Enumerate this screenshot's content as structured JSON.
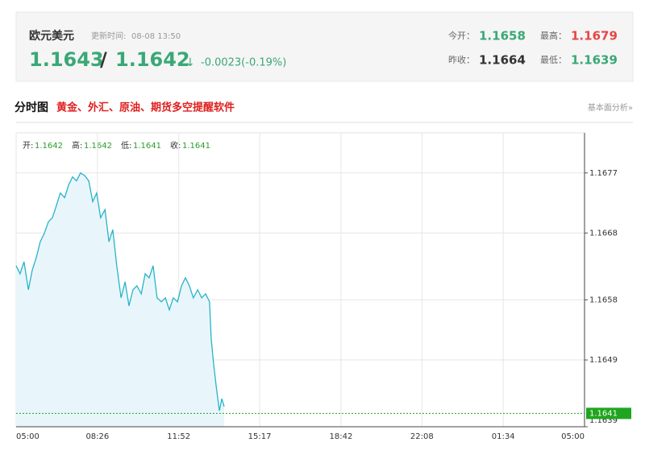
{
  "header": {
    "name": "欧元美元",
    "update_label": "更新时间:",
    "update_time": "08-08 13:50",
    "bid": "1.1643",
    "separator": "/",
    "ask": "1.1642",
    "arrow": "↓",
    "change": "-0.0023(-0.19%)",
    "stats": [
      {
        "label": "今开：",
        "value": "1.1658",
        "color": "#3aa876"
      },
      {
        "label": "最高：",
        "value": "1.1679",
        "color": "#e64646"
      },
      {
        "label": "昨收：",
        "value": "1.1664",
        "color": "#333333"
      },
      {
        "label": "最低：",
        "value": "1.1639",
        "color": "#3aa876"
      }
    ]
  },
  "section": {
    "title": "分时图",
    "promo": "黄金、外汇、原油、期货多空提醒软件",
    "link": "基本面分析»"
  },
  "ohlc": [
    {
      "label": "开:",
      "value": "1.1642"
    },
    {
      "label": "高:",
      "value": "1.1642"
    },
    {
      "label": "低:",
      "value": "1.1641"
    },
    {
      "label": "收:",
      "value": "1.1641"
    }
  ],
  "chart_data": {
    "type": "area",
    "color": "#27b3c9",
    "fill": "#e8f6fb",
    "grid": true,
    "x": [
      0,
      10,
      20,
      31,
      41,
      51,
      61,
      71,
      82,
      92,
      102,
      112,
      123,
      133,
      143,
      153,
      163,
      174,
      184,
      194,
      204,
      214,
      225,
      235,
      245,
      255,
      266,
      276,
      286,
      296,
      306,
      317,
      327,
      337,
      347,
      357,
      368,
      378,
      388,
      398,
      409,
      419,
      429,
      439,
      449,
      460,
      470,
      480,
      490,
      494,
      500,
      507,
      515,
      521,
      527
    ],
    "values": [
      1.16631,
      1.16619,
      1.16637,
      1.16595,
      1.16625,
      1.16643,
      1.16667,
      1.16679,
      1.16697,
      1.16703,
      1.16721,
      1.1674,
      1.16733,
      1.16752,
      1.16764,
      1.16758,
      1.1677,
      1.16766,
      1.16758,
      1.16727,
      1.1674,
      1.16703,
      1.16715,
      1.16667,
      1.16685,
      1.16631,
      1.16583,
      1.16607,
      1.16571,
      1.16595,
      1.16601,
      1.16589,
      1.16619,
      1.16613,
      1.16631,
      1.16583,
      1.16577,
      1.16583,
      1.16565,
      1.16583,
      1.16577,
      1.16601,
      1.16613,
      1.16601,
      1.16583,
      1.16595,
      1.16583,
      1.16589,
      1.16577,
      1.16522,
      1.16486,
      1.1645,
      1.16414,
      1.16432,
      1.1642
    ],
    "xlim": [
      0,
      1440
    ],
    "xticks": [
      {
        "value": 0,
        "label": "05:00"
      },
      {
        "value": 206,
        "label": "08:26"
      },
      {
        "value": 412,
        "label": "11:52"
      },
      {
        "value": 617,
        "label": "15:17"
      },
      {
        "value": 823,
        "label": "18:42"
      },
      {
        "value": 1028,
        "label": "22:08"
      },
      {
        "value": 1234,
        "label": "01:34"
      },
      {
        "value": 1440,
        "label": "05:00"
      }
    ],
    "ylim": [
      1.1639,
      1.1683
    ],
    "yticks": [
      1.1677,
      1.1668,
      1.1658,
      1.1649,
      1.1639
    ],
    "last_price": 1.1641,
    "last_color": "#1fa51f"
  }
}
